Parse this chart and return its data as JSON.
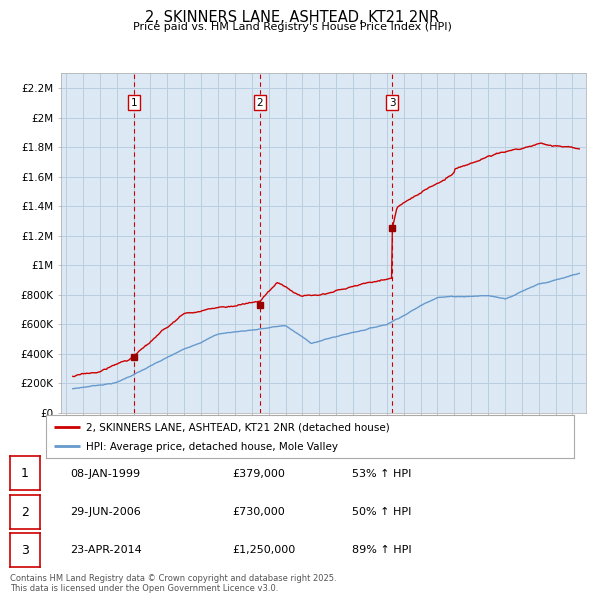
{
  "title": "2, SKINNERS LANE, ASHTEAD, KT21 2NR",
  "subtitle": "Price paid vs. HM Land Registry's House Price Index (HPI)",
  "background_color": "#ffffff",
  "plot_bg_color": "#dce9f5",
  "grid_color": "#b8cfe0",
  "ylim": [
    0,
    2300000
  ],
  "yticks": [
    0,
    200000,
    400000,
    600000,
    800000,
    1000000,
    1200000,
    1400000,
    1600000,
    1800000,
    2000000,
    2200000
  ],
  "ytick_labels": [
    "£0",
    "£200K",
    "£400K",
    "£600K",
    "£800K",
    "£1M",
    "£1.2M",
    "£1.4M",
    "£1.6M",
    "£1.8M",
    "£2M",
    "£2.2M"
  ],
  "sale_dates_num": [
    1999.03,
    2006.49,
    2014.31
  ],
  "sale_prices": [
    379000,
    730000,
    1250000
  ],
  "sale_labels": [
    "1",
    "2",
    "3"
  ],
  "vline_color": "#cc0000",
  "sale_marker_color": "#990000",
  "red_line_color": "#cc0000",
  "blue_line_color": "#6699cc",
  "legend_red_label": "2, SKINNERS LANE, ASHTEAD, KT21 2NR (detached house)",
  "legend_blue_label": "HPI: Average price, detached house, Mole Valley",
  "table_rows": [
    {
      "num": "1",
      "date": "08-JAN-1999",
      "price": "£379,000",
      "hpi": "53% ↑ HPI"
    },
    {
      "num": "2",
      "date": "29-JUN-2006",
      "price": "£730,000",
      "hpi": "50% ↑ HPI"
    },
    {
      "num": "3",
      "date": "23-APR-2014",
      "price": "£1,250,000",
      "hpi": "89% ↑ HPI"
    }
  ],
  "footer": "Contains HM Land Registry data © Crown copyright and database right 2025.\nThis data is licensed under the Open Government Licence v3.0."
}
